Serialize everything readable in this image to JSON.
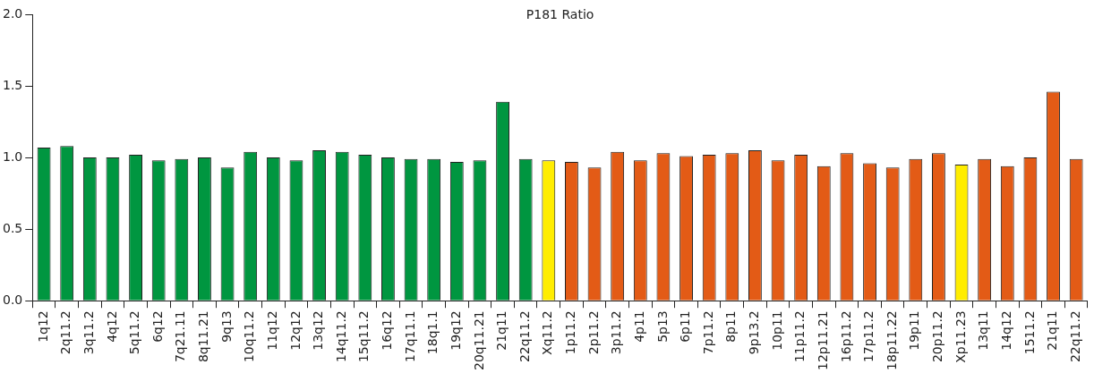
{
  "chart_data": {
    "type": "bar",
    "title": "P181 Ratio",
    "categories": [
      "1q12",
      "2q11.2",
      "3q11.2",
      "4q12",
      "5q11.2",
      "6q12",
      "7q21.11",
      "8q11.21",
      "9q13",
      "10q11.2",
      "11q12",
      "12q12",
      "13q12",
      "14q11.2",
      "15q11.2",
      "16q12",
      "17q11.1",
      "18q1.1",
      "19q12",
      "20q11.21",
      "21q11",
      "22q11.2",
      "Xq11.2",
      "1p11.2",
      "2p11.2",
      "3p11.2",
      "4p11",
      "5p13",
      "6p11",
      "7p11.2",
      "8p11",
      "9p13.2",
      "10p11",
      "11p11.2",
      "12p11.21",
      "16p11.2",
      "17p11.2",
      "18p11.22",
      "19p11",
      "20p11.2",
      "Xp11.23",
      "13q11",
      "14q12",
      "1511.2",
      "21q11",
      "22q11.2"
    ],
    "values": [
      1.07,
      1.08,
      1.0,
      1.0,
      1.02,
      0.98,
      0.99,
      1.0,
      0.93,
      1.04,
      1.0,
      0.98,
      1.05,
      1.04,
      1.02,
      1.0,
      0.99,
      0.99,
      0.97,
      0.98,
      1.39,
      0.99,
      0.98,
      0.97,
      0.93,
      1.04,
      0.98,
      1.03,
      1.01,
      1.02,
      1.03,
      1.05,
      0.98,
      1.02,
      0.94,
      1.03,
      0.96,
      0.93,
      0.99,
      1.03,
      0.95,
      0.99,
      0.94,
      1.0,
      1.46,
      0.99
    ],
    "colors": [
      "#009640",
      "#009640",
      "#009640",
      "#009640",
      "#009640",
      "#009640",
      "#009640",
      "#009640",
      "#009640",
      "#009640",
      "#009640",
      "#009640",
      "#009640",
      "#009640",
      "#009640",
      "#009640",
      "#009640",
      "#009640",
      "#009640",
      "#009640",
      "#009640",
      "#009640",
      "#ffed00",
      "#e35b16",
      "#e35b16",
      "#e35b16",
      "#e35b16",
      "#e35b16",
      "#e35b16",
      "#e35b16",
      "#e35b16",
      "#e35b16",
      "#e35b16",
      "#e35b16",
      "#e35b16",
      "#e35b16",
      "#e35b16",
      "#e35b16",
      "#e35b16",
      "#e35b16",
      "#ffed00",
      "#e35b16",
      "#e35b16",
      "#e35b16",
      "#e35b16",
      "#e35b16"
    ],
    "ylim": [
      0,
      2
    ],
    "yticks": [
      {
        "value": 0,
        "label": "0.0"
      },
      {
        "value": 0.5,
        "label": "0.5"
      },
      {
        "value": 1,
        "label": "1.0"
      },
      {
        "value": 1.5,
        "label": "1.5"
      },
      {
        "value": 2,
        "label": "2.0"
      }
    ],
    "grid": false,
    "legend": false
  }
}
